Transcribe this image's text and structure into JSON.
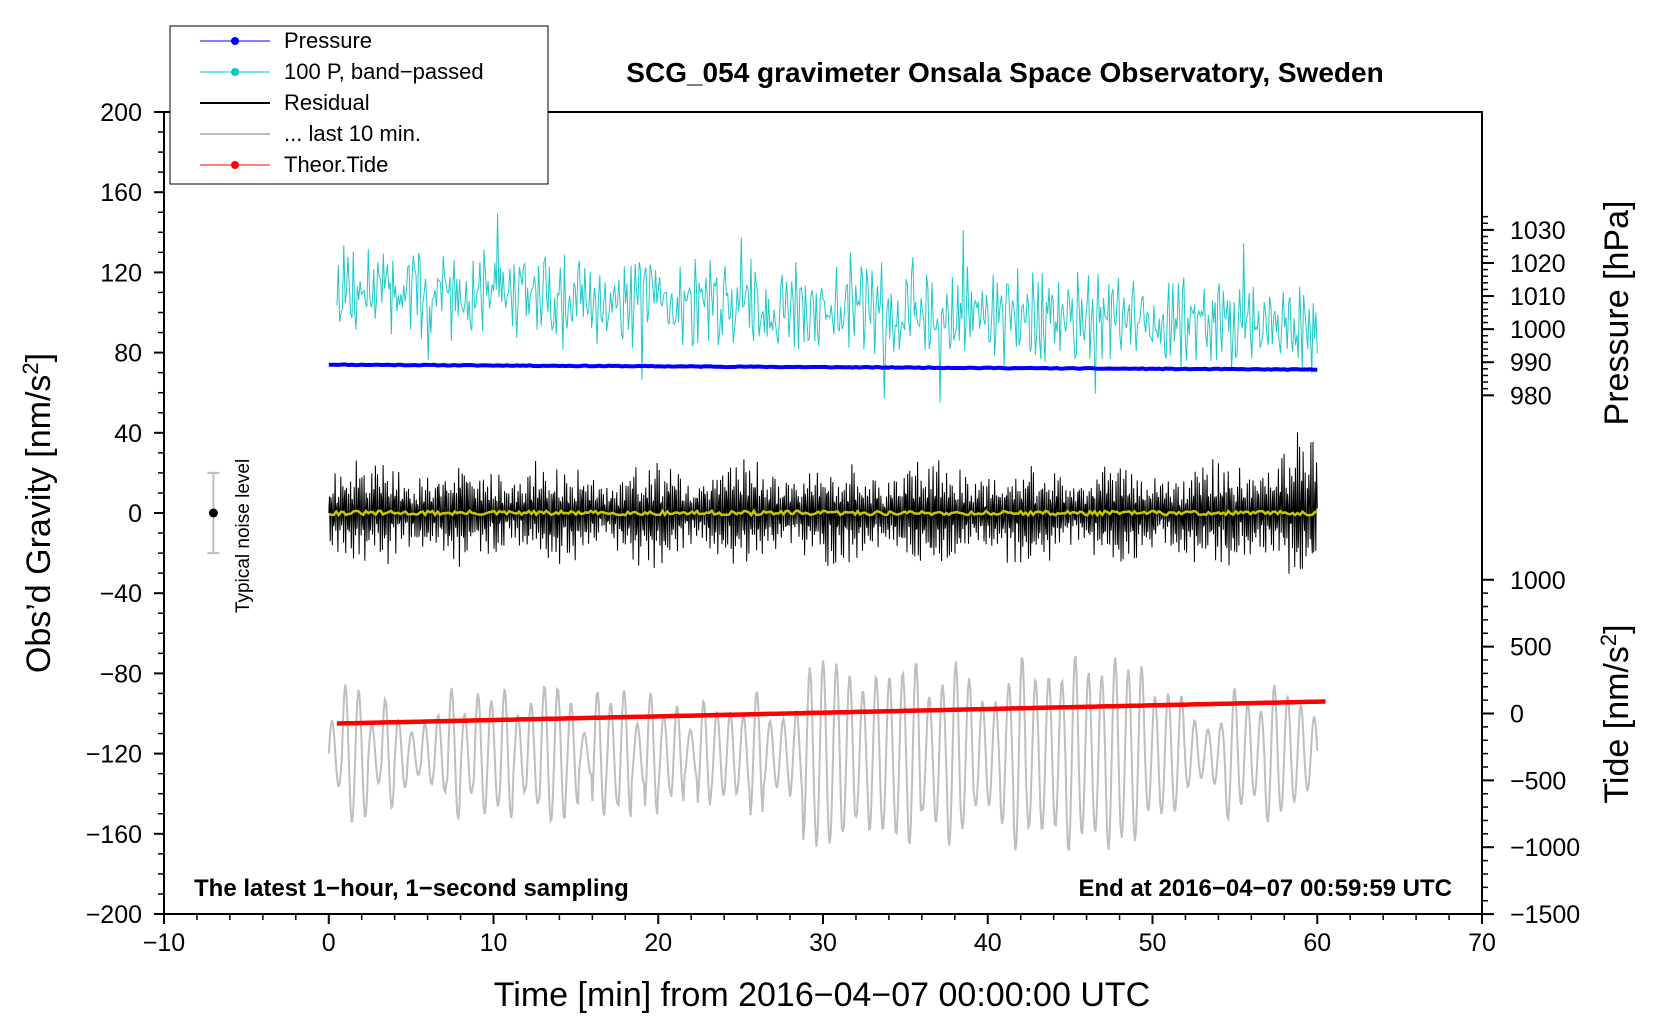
{
  "chart_data": {
    "type": "line",
    "title": "SCG_054 gravimeter Onsala Space Observatory, Sweden",
    "xlabel": "Time [min] from 2016−04−07 00:00:00 UTC",
    "ylabel_main": "Obs’d Gravity [nm/s",
    "ylabel_main_sup": "2",
    "ylabel_main_close": "]",
    "ylabel_pressure": "Pressure [hPa]",
    "ylabel_tide": "Tide [nm/s",
    "ylabel_tide_sup": "2",
    "ylabel_tide_close": "]",
    "xlim": [
      -10,
      70
    ],
    "ylim": [
      -200,
      200
    ],
    "x_ticks": [
      -10,
      0,
      10,
      20,
      30,
      40,
      50,
      60,
      70
    ],
    "x_tick_labels": [
      "−10",
      "0",
      "10",
      "20",
      "30",
      "40",
      "50",
      "60",
      "70"
    ],
    "y_ticks": [
      200,
      160,
      120,
      80,
      40,
      0,
      -40,
      -80,
      -120,
      -160,
      -200
    ],
    "y_tick_labels": [
      "200",
      "160",
      "120",
      "80",
      "40",
      "0",
      "−40",
      "−80",
      "−120",
      "−160",
      "−200"
    ],
    "pressure_axis": {
      "ticks": [
        1030,
        1020,
        1010,
        1000,
        990,
        980
      ],
      "tick_labels": [
        "1030",
        "1020",
        "1010",
        "1000",
        "990",
        "980"
      ],
      "map_gravity_at_1000": 91.7,
      "gravity_per_hpa": 1.65
    },
    "tide_axis": {
      "ticks": [
        1000,
        500,
        0,
        -500,
        -1000,
        -1500
      ],
      "tick_labels": [
        "1000",
        "500",
        "0",
        "−500",
        "−1000",
        "−1500"
      ],
      "map_gravity_at_0": -100,
      "gravity_per_unit": 0.0667
    },
    "legend": [
      {
        "label": "Pressure",
        "color": "#0000ff",
        "marker": true
      },
      {
        "label": "100 P, band−passed",
        "color": "#00c8c8",
        "marker": true
      },
      {
        "label": "Residual",
        "color": "#000000",
        "marker": false
      },
      {
        "label": "... last 10 min.",
        "color": "#bebebe",
        "marker": false
      },
      {
        "label": "Theor.Tide",
        "color": "#ff0000",
        "marker": true
      }
    ],
    "series": [
      {
        "name": "Pressure",
        "color": "#0000ff",
        "x_range": [
          0,
          60
        ],
        "y_start": 74,
        "y_end": 71.5
      },
      {
        "name": "100 P, band−passed",
        "color": "#20c8c8",
        "x_range": [
          0.5,
          60
        ],
        "center": 112,
        "center_end": 92,
        "amplitude": 18
      },
      {
        "name": "Residual",
        "color": "#000000",
        "x_range": [
          0,
          60
        ],
        "amplitude": 22
      },
      {
        "name": "Residual (smoothed)",
        "color": "#c8c800",
        "x_range": [
          0,
          60
        ],
        "center": 0
      },
      {
        "name": "... last 10 min.",
        "color": "#bebebe",
        "x_range": [
          0,
          60
        ],
        "center": -120,
        "amplitude": 30
      },
      {
        "name": "Theor.Tide",
        "color": "#ff0000",
        "x_range": [
          0.5,
          60.5
        ],
        "y_start": -105,
        "y_end": -94
      }
    ],
    "noise_level": {
      "label": "Typical noise level",
      "x": -7,
      "y": 0,
      "half_range": 20
    },
    "footnote_left": "The latest 1−hour, 1−second sampling",
    "footnote_right": "End at 2016−04−07 00:59:59 UTC",
    "colors": {
      "pressure": "#0000ff",
      "bandpassed": "#20c8c8",
      "residual": "#000000",
      "smoothed": "#c8c800",
      "last10": "#bebebe",
      "tide": "#ff0000",
      "noise": "#bebebe"
    }
  }
}
